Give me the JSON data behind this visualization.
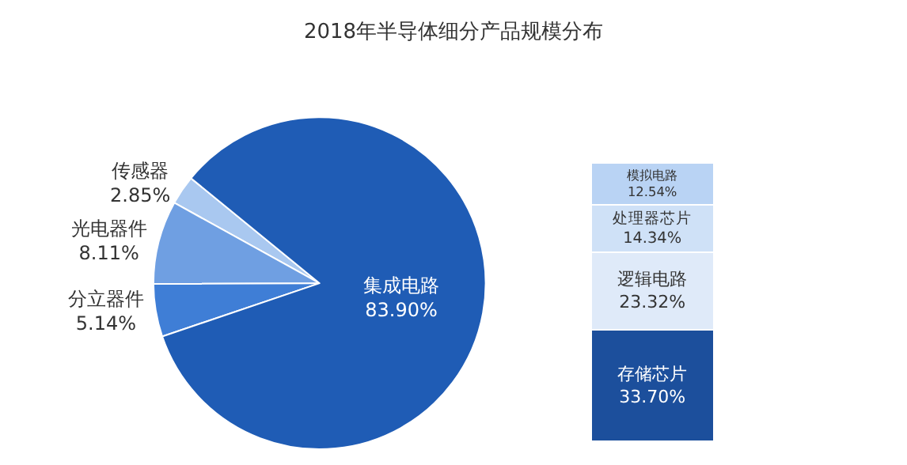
{
  "chart_data": [
    {
      "type": "pie",
      "title": "2018年半导体细分产品规模分布",
      "categories": [
        "传感器",
        "光电器件",
        "分立器件",
        "集成电路"
      ],
      "values": [
        2.85,
        8.11,
        5.14,
        83.9
      ],
      "colors": [
        "#a9c8f0",
        "#6f9fe2",
        "#3f7ed6",
        "#1f5cb5"
      ],
      "value_labels": [
        "2.85%",
        "8.11%",
        "5.14%",
        "83.90%"
      ]
    },
    {
      "type": "bar",
      "stacked": true,
      "categories": [
        null
      ],
      "data_labels": true,
      "series": [
        {
          "name": "存储芯片",
          "color": "#1c4f9c",
          "values": [
            33.7
          ],
          "value_labels": [
            "33.70%"
          ]
        },
        {
          "name": "逻辑电路",
          "color": "#dfeaf9",
          "values": [
            23.32
          ],
          "value_labels": [
            "23.32%"
          ]
        },
        {
          "name": "处理器芯片",
          "color": "#cfe1f7",
          "values": [
            14.34
          ],
          "value_labels": [
            "14.34%"
          ]
        },
        {
          "name": "模拟电路",
          "color": "#b9d3f4",
          "values": [
            12.54
          ],
          "value_labels": [
            "12.54%"
          ]
        }
      ]
    }
  ]
}
